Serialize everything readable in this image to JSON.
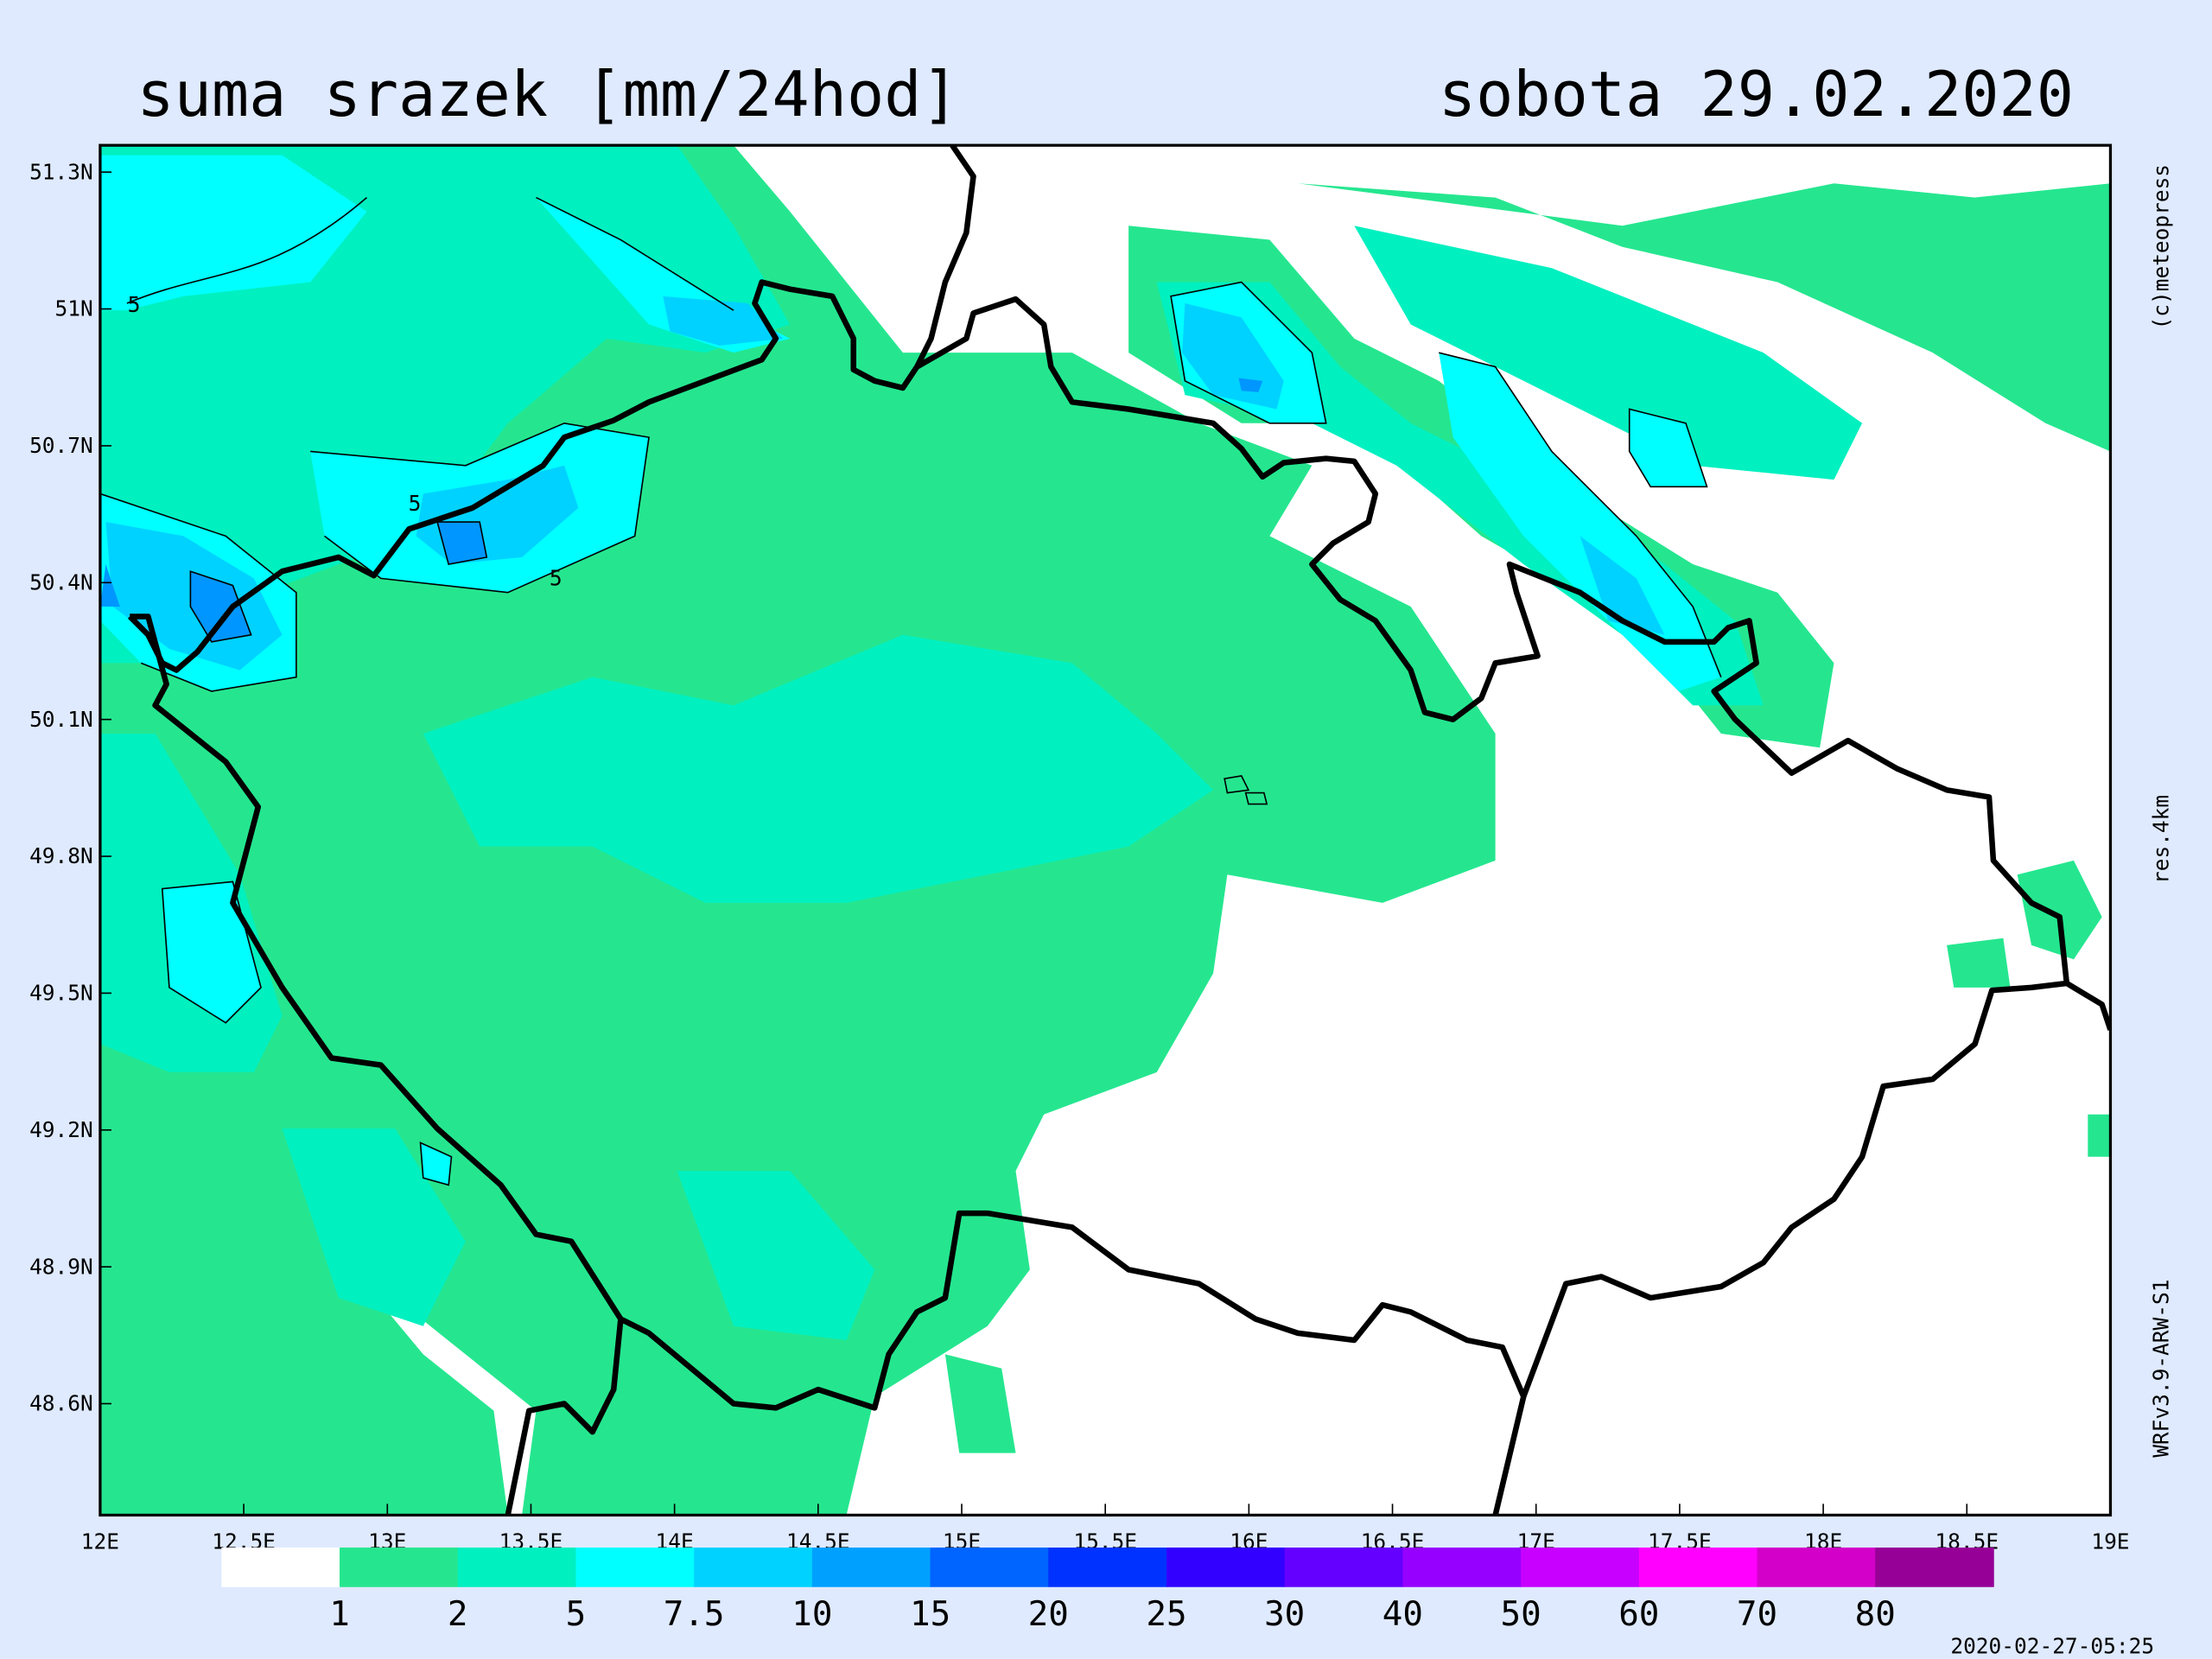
{
  "title": "suma srazek [mm/24hod]",
  "date": "sobota 29.02.2020",
  "map": {
    "lat_ticks": [
      "51.3N",
      "51N",
      "50.7N",
      "50.4N",
      "50.1N",
      "49.8N",
      "49.5N",
      "49.2N",
      "48.9N",
      "48.6N"
    ],
    "lon_ticks": [
      "12E",
      "12.5E",
      "13E",
      "13.5E",
      "14E",
      "14.5E",
      "15E",
      "15.5E",
      "16E",
      "16.5E",
      "17E",
      "17.5E",
      "18E",
      "18.5E",
      "19E"
    ],
    "contour_labels": [
      "5",
      "5",
      "5"
    ]
  },
  "legend": {
    "values": [
      1,
      2,
      5,
      7.5,
      10,
      15,
      20,
      25,
      30,
      40,
      50,
      60,
      70,
      80
    ],
    "colors": [
      "#ffffff",
      "#25e68f",
      "#00f0c0",
      "#00ffff",
      "#00d2ff",
      "#00a0ff",
      "#0064ff",
      "#0032ff",
      "#3200ff",
      "#6400ff",
      "#9600ff",
      "#c800ff",
      "#ff00ff",
      "#d200c8",
      "#960096"
    ]
  },
  "credit": "(c)meteopress",
  "resolution": "res.4km",
  "model": "WRFv3.9-ARW-S1",
  "timestamp": "2020-02-27-05:25"
}
